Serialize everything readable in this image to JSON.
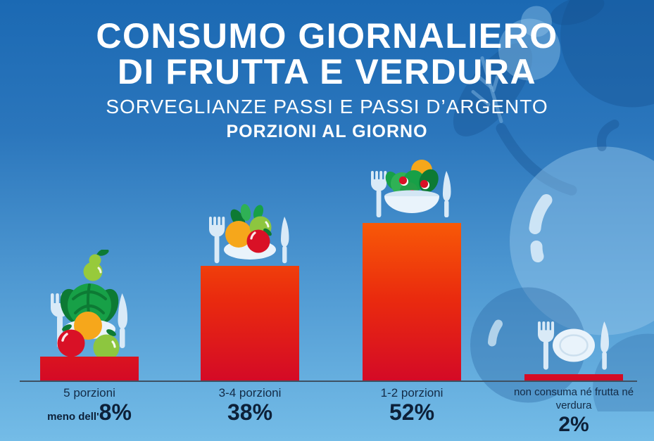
{
  "header": {
    "title_line1": "CONSUMO GIORNALIERO",
    "title_line2": "DI FRUTTA E VERDURA",
    "subtitle": "SORVEGLIANZE PASSI E PASSI D’ARGENTO",
    "kicker": "PORZIONI AL GIORNO"
  },
  "chart_data": {
    "type": "bar",
    "title": "CONSUMO GIORNALIERO DI FRUTTA E VERDURA",
    "subtitle": "SORVEGLIANZE PASSI E PASSI D’ARGENTO",
    "units_label": "PORZIONI AL GIORNO",
    "categories": [
      "5 porzioni",
      "3-4 porzioni",
      "1-2 porzioni",
      "non consuma né frutta né verdura"
    ],
    "values": [
      8,
      38,
      52,
      2
    ],
    "grid": false,
    "legend": false,
    "ylim": [
      0,
      55
    ],
    "bars": [
      {
        "category": "5 porzioni",
        "value_pct": 8,
        "value_prefix": "meno dell'",
        "value_label": "8%",
        "icon": "fruit-stack-icon"
      },
      {
        "category": "3-4 porzioni",
        "value_pct": 38,
        "value_prefix": "",
        "value_label": "38%",
        "icon": "fruit-plate-icon"
      },
      {
        "category": "1-2 porzioni",
        "value_pct": 52,
        "value_prefix": "",
        "value_label": "52%",
        "icon": "salad-bowl-icon"
      },
      {
        "category": "non consuma né frutta né verdura",
        "value_pct": 2,
        "value_prefix": "",
        "value_label": "2%",
        "icon": "empty-plate-icon"
      }
    ],
    "colors": {
      "bar_gradient_top": "#f85a07",
      "bar_gradient_bottom": "#d40a26",
      "background_top": "#1b69b3",
      "background_bottom": "#74bce7",
      "title_text": "#ffffff",
      "label_text": "#132b46",
      "baseline": "#3e5163"
    }
  }
}
